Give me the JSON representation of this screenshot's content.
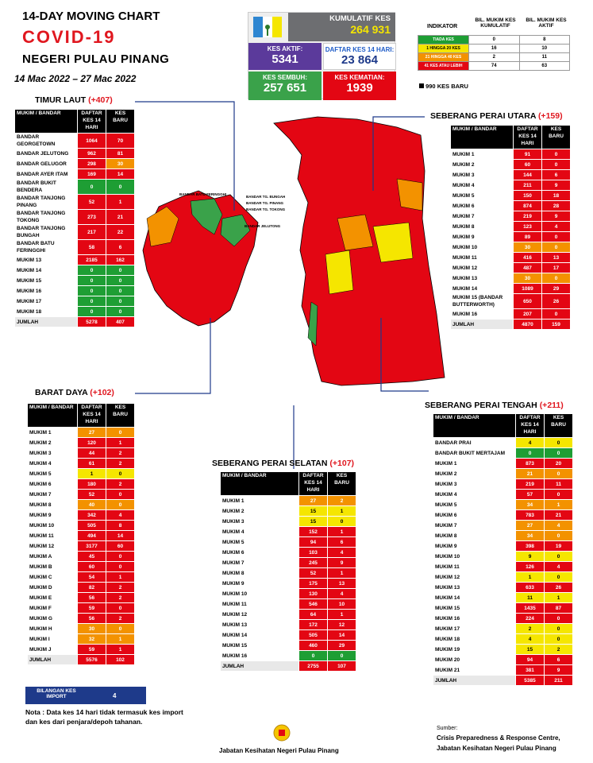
{
  "header": {
    "line1": "14-DAY MOVING CHART",
    "line2": "COVID-19",
    "line3": "NEGERI PULAU PINANG",
    "date_range": "14 Mac 2022 – 27 Mac 2022"
  },
  "summary": {
    "kumulatif_label": "KUMULATIF KES",
    "kumulatif_value": "264 931",
    "aktif_label": "KES AKTIF:",
    "aktif_value": "5341",
    "daftar_label": "DAFTAR KES 14 HARI:",
    "daftar_value": "23 864",
    "sembuh_label": "KES SEMBUH:",
    "sembuh_value": "257 651",
    "kematian_label": "KES KEMATIAN:",
    "kematian_value": "1939"
  },
  "indicator": {
    "title": "INDIKATOR",
    "col1": "BIL. MUKIM KES KUMULATIF",
    "col2": "BIL. MUKIM KES AKTIF",
    "rows": [
      {
        "label": "TIADA KES",
        "c1": "0",
        "c2": "8",
        "color": "#1e9e34"
      },
      {
        "label": "1 HINGGA 20 KES",
        "c1": "16",
        "c2": "10",
        "color": "#f5e600"
      },
      {
        "label": "21 HINGGA 40 KES",
        "c1": "2",
        "c2": "11",
        "color": "#f39200"
      },
      {
        "label": "41 KES ATAU LEBIH",
        "c1": "74",
        "c2": "63",
        "color": "#e30613"
      }
    ],
    "new_cases": "990 KES BARU"
  },
  "sections": {
    "timur_laut": {
      "title": "TIMUR LAUT",
      "inc": "(+407)",
      "h1": "MUKIM / BANDAR",
      "h2": "DAFTAR KES 14 HARI",
      "h3": "KES BARU",
      "rows": [
        [
          "BANDAR GEORGETOWN",
          "1064",
          "70",
          "#e30613",
          "#e30613"
        ],
        [
          "BANDAR JELUTONG",
          "962",
          "81",
          "#e30613",
          "#e30613"
        ],
        [
          "BANDAR GELUGOR",
          "298",
          "30",
          "#e30613",
          "#f39200"
        ],
        [
          "BANDAR AYER ITAM",
          "169",
          "14",
          "#e30613",
          "#e30613"
        ],
        [
          "BANDAR BUKIT BENDERA",
          "0",
          "0",
          "#1e9e34",
          "#1e9e34"
        ],
        [
          "BANDAR TANJONG PINANG",
          "52",
          "1",
          "#e30613",
          "#e30613"
        ],
        [
          "BANDAR TANJONG TOKONG",
          "273",
          "21",
          "#e30613",
          "#e30613"
        ],
        [
          "BANDAR TANJONG BUNGAH",
          "217",
          "22",
          "#e30613",
          "#e30613"
        ],
        [
          "BANDAR BATU FERINGGHI",
          "58",
          "6",
          "#e30613",
          "#e30613"
        ],
        [
          "MUKIM 13",
          "2185",
          "162",
          "#e30613",
          "#e30613"
        ],
        [
          "MUKIM 14",
          "0",
          "0",
          "#1e9e34",
          "#1e9e34"
        ],
        [
          "MUKIM 15",
          "0",
          "0",
          "#1e9e34",
          "#1e9e34"
        ],
        [
          "MUKIM 16",
          "0",
          "0",
          "#1e9e34",
          "#1e9e34"
        ],
        [
          "MUKIM 17",
          "0",
          "0",
          "#1e9e34",
          "#1e9e34"
        ],
        [
          "MUKIM 18",
          "0",
          "0",
          "#1e9e34",
          "#1e9e34"
        ]
      ],
      "total": [
        "JUMLAH",
        "5278",
        "407"
      ]
    },
    "barat_daya": {
      "title": "BARAT DAYA",
      "inc": "(+102)",
      "h1": "MUKIM / BANDAR",
      "h2": "DAFTAR KES 14 HARI",
      "h3": "KES BARU",
      "rows": [
        [
          "MUKIM 1",
          "27",
          "0",
          "#f39200",
          "#f39200"
        ],
        [
          "MUKIM 2",
          "120",
          "1",
          "#e30613",
          "#e30613"
        ],
        [
          "MUKIM 3",
          "44",
          "2",
          "#e30613",
          "#e30613"
        ],
        [
          "MUKIM 4",
          "61",
          "2",
          "#e30613",
          "#e30613"
        ],
        [
          "MUKIM 5",
          "1",
          "0",
          "#f5e600",
          "#f5e600"
        ],
        [
          "MUKIM 6",
          "180",
          "2",
          "#e30613",
          "#e30613"
        ],
        [
          "MUKIM 7",
          "52",
          "0",
          "#e30613",
          "#e30613"
        ],
        [
          "MUKIM 8",
          "40",
          "0",
          "#f39200",
          "#f39200"
        ],
        [
          "MUKIM 9",
          "342",
          "4",
          "#e30613",
          "#e30613"
        ],
        [
          "MUKIM 10",
          "505",
          "8",
          "#e30613",
          "#e30613"
        ],
        [
          "MUKIM 11",
          "494",
          "14",
          "#e30613",
          "#e30613"
        ],
        [
          "MUKIM 12",
          "3177",
          "60",
          "#e30613",
          "#e30613"
        ],
        [
          "MUKIM A",
          "45",
          "0",
          "#e30613",
          "#e30613"
        ],
        [
          "MUKIM B",
          "60",
          "0",
          "#e30613",
          "#e30613"
        ],
        [
          "MUKIM C",
          "54",
          "1",
          "#e30613",
          "#e30613"
        ],
        [
          "MUKIM D",
          "82",
          "2",
          "#e30613",
          "#e30613"
        ],
        [
          "MUKIM E",
          "56",
          "2",
          "#e30613",
          "#e30613"
        ],
        [
          "MUKIM F",
          "59",
          "0",
          "#e30613",
          "#e30613"
        ],
        [
          "MUKIM G",
          "56",
          "2",
          "#e30613",
          "#e30613"
        ],
        [
          "MUKIM H",
          "30",
          "0",
          "#f39200",
          "#f39200"
        ],
        [
          "MUKIM I",
          "32",
          "1",
          "#f39200",
          "#f39200"
        ],
        [
          "MUKIM J",
          "59",
          "1",
          "#e30613",
          "#e30613"
        ]
      ],
      "total": [
        "JUMLAH",
        "5576",
        "102"
      ]
    },
    "spu": {
      "title": "SEBERANG PERAI UTARA",
      "inc": "(+159)",
      "h1": "MUKIM / BANDAR",
      "h2": "DAFTAR KES 14 HARI",
      "h3": "KES BARU",
      "rows": [
        [
          "MUKIM 1",
          "91",
          "0",
          "#e30613",
          "#e30613"
        ],
        [
          "MUKIM 2",
          "60",
          "0",
          "#e30613",
          "#e30613"
        ],
        [
          "MUKIM 3",
          "144",
          "6",
          "#e30613",
          "#e30613"
        ],
        [
          "MUKIM 4",
          "211",
          "9",
          "#e30613",
          "#e30613"
        ],
        [
          "MUKIM 5",
          "150",
          "18",
          "#e30613",
          "#e30613"
        ],
        [
          "MUKIM 6",
          "874",
          "28",
          "#e30613",
          "#e30613"
        ],
        [
          "MUKIM 7",
          "219",
          "9",
          "#e30613",
          "#e30613"
        ],
        [
          "MUKIM 8",
          "123",
          "4",
          "#e30613",
          "#e30613"
        ],
        [
          "MUKIM 9",
          "89",
          "0",
          "#e30613",
          "#e30613"
        ],
        [
          "MUKIM 10",
          "30",
          "0",
          "#f39200",
          "#f39200"
        ],
        [
          "MUKIM 11",
          "416",
          "13",
          "#e30613",
          "#e30613"
        ],
        [
          "MUKIM 12",
          "487",
          "17",
          "#e30613",
          "#e30613"
        ],
        [
          "MUKIM 13",
          "30",
          "0",
          "#f39200",
          "#f39200"
        ],
        [
          "MUKIM 14",
          "1089",
          "29",
          "#e30613",
          "#e30613"
        ],
        [
          "MUKIM 15 (BANDAR BUTTERWORTH)",
          "650",
          "26",
          "#e30613",
          "#e30613"
        ],
        [
          "MUKIM 16",
          "207",
          "0",
          "#e30613",
          "#e30613"
        ]
      ],
      "total": [
        "JUMLAH",
        "4870",
        "159"
      ]
    },
    "sps": {
      "title": "SEBERANG PERAI SELATAN",
      "inc": "(+107)",
      "h1": "MUKIM / BANDAR",
      "h2": "DAFTAR KES 14 HARI",
      "h3": "KES BARU",
      "rows": [
        [
          "MUKIM 1",
          "27",
          "2",
          "#f39200",
          "#f39200"
        ],
        [
          "MUKIM 2",
          "15",
          "1",
          "#f5e600",
          "#f5e600"
        ],
        [
          "MUKIM 3",
          "15",
          "0",
          "#f5e600",
          "#f5e600"
        ],
        [
          "MUKIM 4",
          "152",
          "1",
          "#e30613",
          "#e30613"
        ],
        [
          "MUKIM 5",
          "94",
          "6",
          "#e30613",
          "#e30613"
        ],
        [
          "MUKIM 6",
          "103",
          "4",
          "#e30613",
          "#e30613"
        ],
        [
          "MUKIM 7",
          "245",
          "9",
          "#e30613",
          "#e30613"
        ],
        [
          "MUKIM 8",
          "52",
          "1",
          "#e30613",
          "#e30613"
        ],
        [
          "MUKIM 9",
          "175",
          "13",
          "#e30613",
          "#e30613"
        ],
        [
          "MUKIM 10",
          "130",
          "4",
          "#e30613",
          "#e30613"
        ],
        [
          "MUKIM 11",
          "546",
          "10",
          "#e30613",
          "#e30613"
        ],
        [
          "MUKIM 12",
          "64",
          "1",
          "#e30613",
          "#e30613"
        ],
        [
          "MUKIM 13",
          "172",
          "12",
          "#e30613",
          "#e30613"
        ],
        [
          "MUKIM 14",
          "505",
          "14",
          "#e30613",
          "#e30613"
        ],
        [
          "MUKIM 15",
          "460",
          "29",
          "#e30613",
          "#e30613"
        ],
        [
          "MUKIM 16",
          "0",
          "0",
          "#1e9e34",
          "#1e9e34"
        ]
      ],
      "total": [
        "JUMLAH",
        "2755",
        "107"
      ]
    },
    "spt": {
      "title": "SEBERANG PERAI TENGAH",
      "inc": "(+211)",
      "h1": "MUKIM / BANDAR",
      "h2": "DAFTAR KES 14 HARI",
      "h3": "KES BARU",
      "rows": [
        [
          "BANDAR PRAI",
          "4",
          "0",
          "#f5e600",
          "#f5e600"
        ],
        [
          "BANDAR BUKIT MERTAJAM",
          "0",
          "0",
          "#1e9e34",
          "#1e9e34"
        ],
        [
          "MUKIM 1",
          "873",
          "20",
          "#e30613",
          "#e30613"
        ],
        [
          "MUKIM 2",
          "21",
          "0",
          "#f39200",
          "#f39200"
        ],
        [
          "MUKIM 3",
          "219",
          "11",
          "#e30613",
          "#e30613"
        ],
        [
          "MUKIM 4",
          "57",
          "0",
          "#e30613",
          "#e30613"
        ],
        [
          "MUKIM 5",
          "34",
          "1",
          "#f39200",
          "#f39200"
        ],
        [
          "MUKIM 6",
          "783",
          "21",
          "#e30613",
          "#e30613"
        ],
        [
          "MUKIM 7",
          "27",
          "4",
          "#f39200",
          "#f39200"
        ],
        [
          "MUKIM 8",
          "34",
          "0",
          "#f39200",
          "#f39200"
        ],
        [
          "MUKIM 9",
          "398",
          "19",
          "#e30613",
          "#e30613"
        ],
        [
          "MUKIM 10",
          "9",
          "0",
          "#f5e600",
          "#f5e600"
        ],
        [
          "MUKIM 11",
          "126",
          "4",
          "#e30613",
          "#e30613"
        ],
        [
          "MUKIM 12",
          "1",
          "0",
          "#f5e600",
          "#f5e600"
        ],
        [
          "MUKIM 13",
          "633",
          "26",
          "#e30613",
          "#e30613"
        ],
        [
          "MUKIM 14",
          "11",
          "1",
          "#f5e600",
          "#f5e600"
        ],
        [
          "MUKIM 15",
          "1435",
          "87",
          "#e30613",
          "#e30613"
        ],
        [
          "MUKIM 16",
          "224",
          "0",
          "#e30613",
          "#e30613"
        ],
        [
          "MUKIM 17",
          "2",
          "0",
          "#f5e600",
          "#f5e600"
        ],
        [
          "MUKIM 18",
          "4",
          "0",
          "#f5e600",
          "#f5e600"
        ],
        [
          "MUKIM 19",
          "15",
          "2",
          "#f5e600",
          "#f5e600"
        ],
        [
          "MUKIM 20",
          "94",
          "6",
          "#e30613",
          "#e30613"
        ],
        [
          "MUKIM 21",
          "381",
          "9",
          "#e30613",
          "#e30613"
        ]
      ],
      "total": [
        "JUMLAH",
        "5385",
        "211"
      ]
    }
  },
  "import": {
    "label": "BILANGAN KES IMPORT",
    "value": "4"
  },
  "note": "Nota : Data kes 14 hari tidak termasuk kes import dan kes dari penjara/depoh tahanan.",
  "map_labels": [
    "BANDAR BATU FERINGGHI",
    "BANDAR TG. BUNGAH",
    "BANDAR TG. PINANG",
    "BANDAR TG. TOKONG",
    "BANDAR JELUTONG"
  ],
  "footer": {
    "dept": "Jabatan Kesihatan Negeri Pulau Pinang",
    "source_label": "Sumber:",
    "source_line1": "Crisis Preparedness & Response Centre,",
    "source_line2": "Jabatan Kesihatan Negeri Pulau Pinang"
  }
}
